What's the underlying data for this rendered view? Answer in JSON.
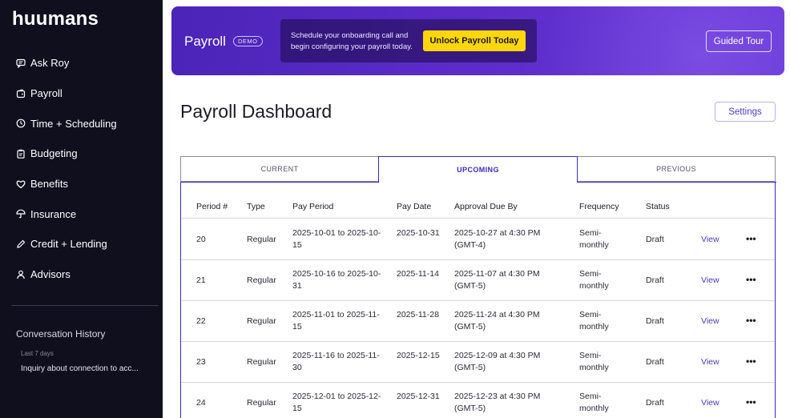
{
  "sidebar": {
    "logo": "huumans",
    "items": [
      {
        "label": "Ask Roy",
        "icon": "chat-icon"
      },
      {
        "label": "Payroll",
        "icon": "wallet-icon"
      },
      {
        "label": "Time + Scheduling",
        "icon": "clock-icon"
      },
      {
        "label": "Budgeting",
        "icon": "clipboard-icon"
      },
      {
        "label": "Benefits",
        "icon": "heart-icon"
      },
      {
        "label": "Insurance",
        "icon": "umbrella-icon"
      },
      {
        "label": "Credit + Lending",
        "icon": "pencil-icon"
      },
      {
        "label": "Advisors",
        "icon": "person-icon"
      }
    ],
    "conversation_history": {
      "title": "Conversation History",
      "group_label": "Last 7 days",
      "items": [
        "Inquiry about connection to acc..."
      ]
    }
  },
  "banner": {
    "title": "Payroll",
    "badge": "DEMO",
    "promo_text": "Schedule your onboarding call and begin configuring your payroll today.",
    "unlock_label": "Unlock Payroll Today",
    "tour_label": "Guided Tour"
  },
  "main": {
    "title": "Payroll Dashboard",
    "settings_label": "Settings",
    "tabs": [
      {
        "label": "CURRENT",
        "active": false
      },
      {
        "label": "UPCOMING",
        "active": true
      },
      {
        "label": "PREVIOUS",
        "active": false
      }
    ],
    "table": {
      "headers": [
        "Period #",
        "Type",
        "Pay Period",
        "Pay Date",
        "Approval Due By",
        "Frequency",
        "Status"
      ],
      "rows": [
        {
          "period": "20",
          "type": "Regular",
          "pay_period": "2025-10-01 to 2025-10-15",
          "pay_date": "2025-10-31",
          "approval": "2025-10-27 at 4:30 PM (GMT-4)",
          "frequency": "Semi-monthly",
          "status": "Draft",
          "action": "View"
        },
        {
          "period": "21",
          "type": "Regular",
          "pay_period": "2025-10-16 to 2025-10-31",
          "pay_date": "2025-11-14",
          "approval": "2025-11-07 at 4:30 PM (GMT-5)",
          "frequency": "Semi-monthly",
          "status": "Draft",
          "action": "View"
        },
        {
          "period": "22",
          "type": "Regular",
          "pay_period": "2025-11-01 to 2025-11-15",
          "pay_date": "2025-11-28",
          "approval": "2025-11-24 at 4:30 PM (GMT-5)",
          "frequency": "Semi-monthly",
          "status": "Draft",
          "action": "View"
        },
        {
          "period": "23",
          "type": "Regular",
          "pay_period": "2025-11-16 to 2025-11-30",
          "pay_date": "2025-12-15",
          "approval": "2025-12-09 at 4:30 PM (GMT-5)",
          "frequency": "Semi-monthly",
          "status": "Draft",
          "action": "View"
        },
        {
          "period": "24",
          "type": "Regular",
          "pay_period": "2025-12-01 to 2025-12-15",
          "pay_date": "2025-12-31",
          "approval": "2025-12-23 at 4:30 PM (GMT-5)",
          "frequency": "Semi-monthly",
          "status": "Draft",
          "action": "View"
        }
      ]
    }
  },
  "colors": {
    "sidebar_bg": "#0f0f1e",
    "banner": "#5b2bc8",
    "accent": "#3a2bc0",
    "cta": "#ffd60a"
  }
}
